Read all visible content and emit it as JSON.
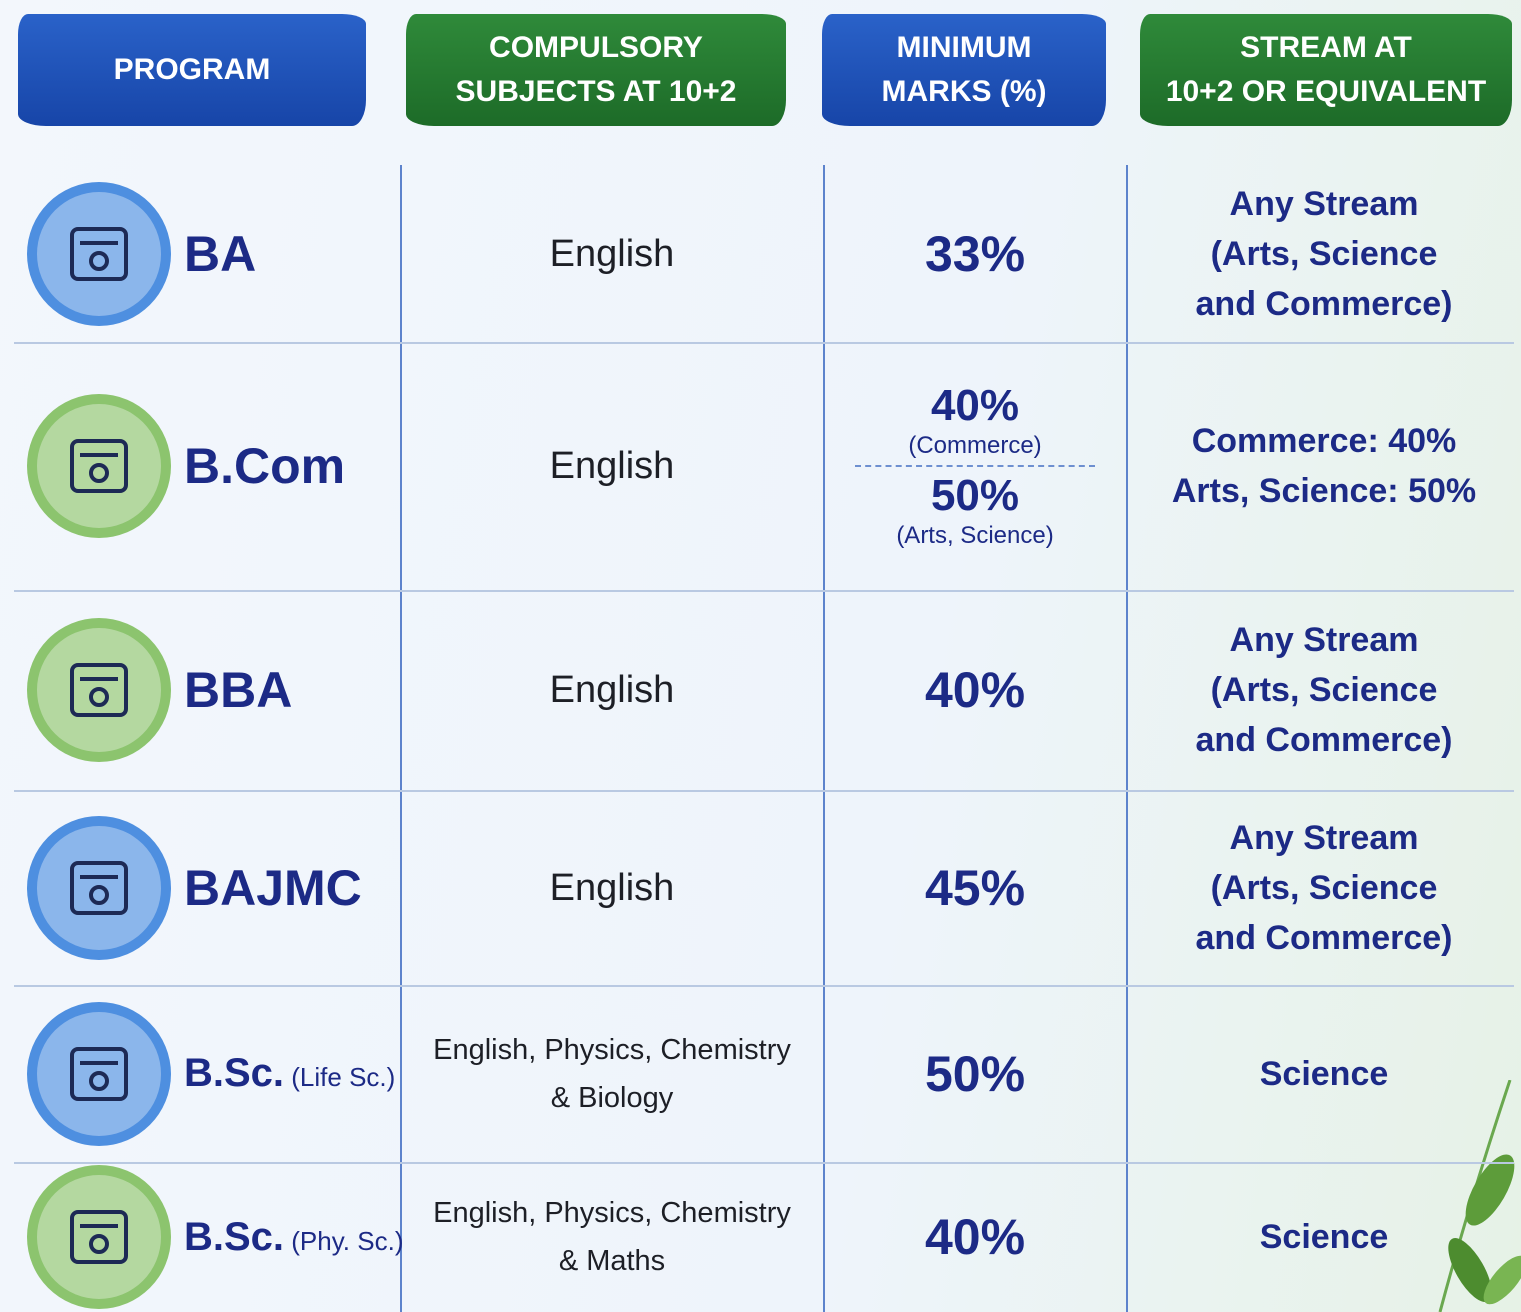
{
  "header": {
    "columns": [
      [
        "PROGRAM"
      ],
      [
        "COMPULSORY",
        "SUBJECTS AT 10+2"
      ],
      [
        "MINIMUM",
        "MARKS (%)"
      ],
      [
        "STREAM AT",
        "10+2 OR EQUIVALENT"
      ]
    ]
  },
  "table": {
    "rows": [
      {
        "program": "BA",
        "subjects": [
          "English"
        ],
        "marks": [
          {
            "value": "33%"
          }
        ],
        "stream": [
          "Any Stream",
          "(Arts, Science",
          "and Commerce)"
        ]
      },
      {
        "program": "B.Com",
        "subjects": [
          "English"
        ],
        "marks": [
          {
            "value": "40%",
            "note": "(Commerce)"
          },
          {
            "value": "50%",
            "note": "(Arts, Science)"
          }
        ],
        "stream": [
          "Commerce: 40%",
          "Arts, Science: 50%"
        ]
      },
      {
        "program": "BBA",
        "subjects": [
          "English"
        ],
        "marks": [
          {
            "value": "40%"
          }
        ],
        "stream": [
          "Any Stream",
          "(Arts, Science",
          "and Commerce)"
        ]
      },
      {
        "program": "BAJMC",
        "subjects": [
          "English"
        ],
        "marks": [
          {
            "value": "45%"
          }
        ],
        "stream": [
          "Any Stream",
          "(Arts, Science",
          "and Commerce)"
        ]
      },
      {
        "program": "B.Sc.",
        "qualifier": "(Life Sc.)",
        "subjects": [
          "English, Physics, Chemistry",
          "& Biology"
        ],
        "marks": [
          {
            "value": "50%"
          }
        ],
        "stream": [
          "Science"
        ]
      },
      {
        "program": "B.Sc.",
        "qualifier": "(Phy. Sc.)",
        "subjects": [
          "English, Physics, Chemistry",
          "& Maths"
        ],
        "marks": [
          {
            "value": "40%"
          }
        ],
        "stream": [
          "Science"
        ]
      }
    ]
  }
}
